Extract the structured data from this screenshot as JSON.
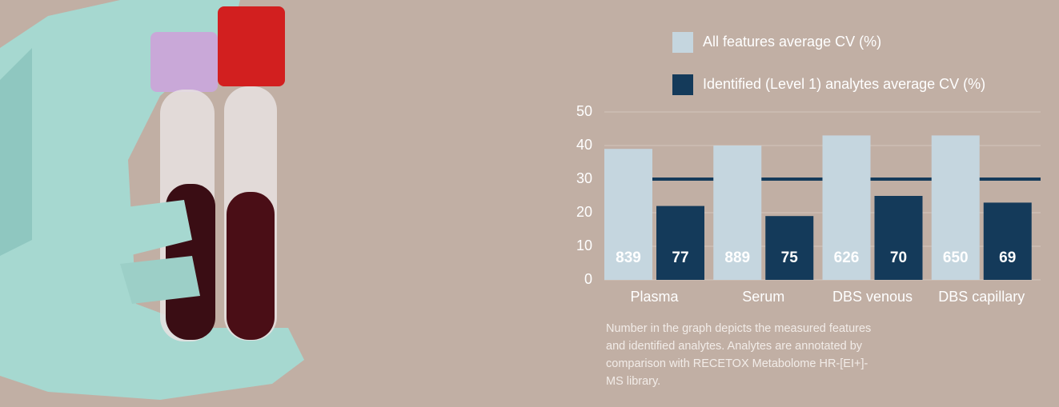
{
  "chart_data": {
    "type": "bar",
    "categories": [
      "Plasma",
      "Serum",
      "DBS venous",
      "DBS capillary"
    ],
    "series": [
      {
        "name": "All features average CV (%)",
        "color": "#c5d6df",
        "values": [
          39,
          40,
          43,
          43
        ],
        "bar_annotations": [
          839,
          889,
          626,
          650
        ]
      },
      {
        "name": "Identified (Level 1) analytes average CV (%)",
        "color": "#143a5a",
        "values": [
          22,
          19,
          25,
          23
        ],
        "bar_annotations": [
          77,
          75,
          70,
          69
        ]
      }
    ],
    "reference_line": {
      "value": 30,
      "color": "#143a5a"
    },
    "ylim": [
      0,
      50
    ],
    "yticks": [
      0,
      10,
      20,
      30,
      40,
      50
    ],
    "grid": true,
    "note": [
      "Number in the graph depicts the measured features",
      "and identified analytes. Analytes are annotated by",
      "comparison with RECETOX Metabolome HR-[EI+]-",
      "MS library."
    ]
  }
}
